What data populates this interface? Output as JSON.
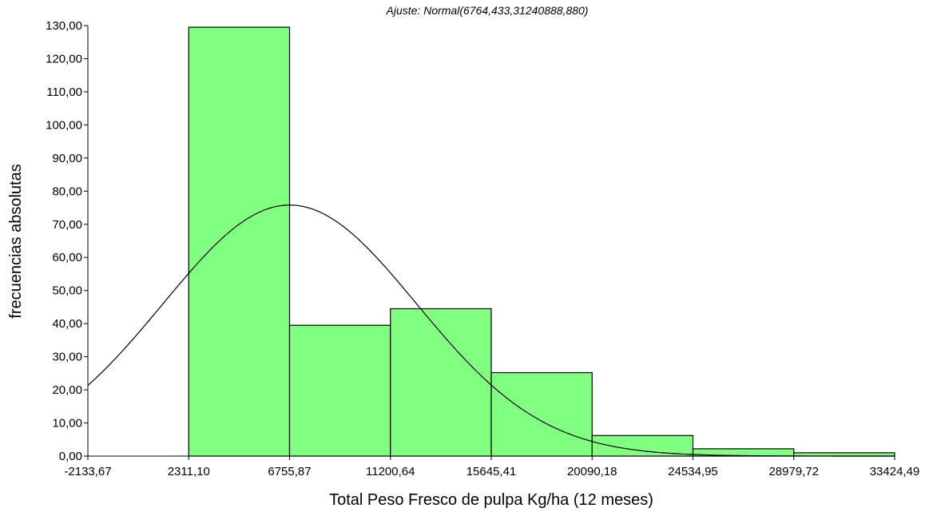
{
  "chart_data": {
    "type": "bar",
    "subtitle": "Ajuste: Normal(6764,433,31240888,880)",
    "xlabel": "Total Peso Fresco de pulpa Kg/ha (12 meses)",
    "ylabel": "frecuencias absolutas",
    "x_tick_labels": [
      "-2133,67",
      "2311,10",
      "6755,87",
      "11200,64",
      "15645,41",
      "20090,18",
      "24534,95",
      "28979,72",
      "33424,49"
    ],
    "x_ticks": [
      -2133.67,
      2311.1,
      6755.87,
      11200.64,
      15645.41,
      20090.18,
      24534.95,
      28979.72,
      33424.49
    ],
    "y_tick_labels": [
      "0,00",
      "10,00",
      "20,00",
      "30,00",
      "40,00",
      "50,00",
      "60,00",
      "70,00",
      "80,00",
      "90,00",
      "100,00",
      "110,00",
      "120,00",
      "130,00"
    ],
    "xlim": [
      -2133.67,
      33424.49
    ],
    "ylim": [
      0,
      130
    ],
    "bins": [
      {
        "x0": 2311.1,
        "x1": 6755.87,
        "value": 129.5
      },
      {
        "x0": 6755.87,
        "x1": 11200.64,
        "value": 39.5
      },
      {
        "x0": 11200.64,
        "x1": 15645.41,
        "value": 44.5
      },
      {
        "x0": 15645.41,
        "x1": 20090.18,
        "value": 25.2
      },
      {
        "x0": 20090.18,
        "x1": 24534.95,
        "value": 6.2
      },
      {
        "x0": 24534.95,
        "x1": 28979.72,
        "value": 2.2
      },
      {
        "x0": 28979.72,
        "x1": 33424.49,
        "value": 1.0
      }
    ],
    "fit": {
      "distribution": "normal",
      "mean": 6764.433,
      "variance": 31240888.88,
      "peak": 75.8
    },
    "colors": {
      "bar_fill": "#80ff80",
      "bar_stroke": "#000000",
      "curve": "#000000"
    }
  }
}
